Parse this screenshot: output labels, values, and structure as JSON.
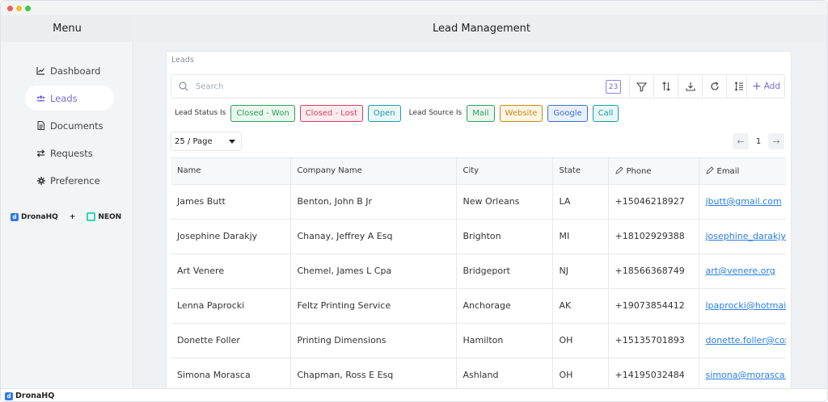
{
  "sidebar": {
    "title": "Menu",
    "items": [
      {
        "label": "Dashboard",
        "icon": "chart-line-icon"
      },
      {
        "label": "Leads",
        "icon": "users-icon"
      },
      {
        "label": "Documents",
        "icon": "document-icon"
      },
      {
        "label": "Requests",
        "icon": "swap-arrows-icon"
      },
      {
        "label": "Preference",
        "icon": "gear-icon"
      }
    ],
    "active_index": 1,
    "brand": {
      "left": "DronaHQ",
      "plus": "+",
      "right": "NEON"
    }
  },
  "header": {
    "title": "Lead Management"
  },
  "card": {
    "title": "Leads",
    "search": {
      "placeholder": "Search",
      "value": ""
    },
    "count_badge": "23",
    "add_label": "Add"
  },
  "filters": {
    "status_label": "Lead Status Is",
    "status_chips": [
      {
        "label": "Closed - Won",
        "color": "#2e9e58",
        "bg": "#eaf7ef"
      },
      {
        "label": "Closed - Lost",
        "color": "#d43f5c",
        "bg": "#fdecef"
      },
      {
        "label": "Open",
        "color": "#1f9aa5",
        "bg": "#e8f7f8"
      }
    ],
    "source_label": "Lead Source Is",
    "source_chips": [
      {
        "label": "Mail",
        "color": "#2e9e58",
        "bg": "#eaf7ef"
      },
      {
        "label": "Website",
        "color": "#c58a12",
        "bg": "#fdf5e4"
      },
      {
        "label": "Google",
        "color": "#3b6fd0",
        "bg": "#e9f0fc"
      },
      {
        "label": "Call",
        "color": "#1f9aa5",
        "bg": "#e8f7f8"
      }
    ]
  },
  "pagination": {
    "page_size": "25 / Page",
    "page": "1"
  },
  "table": {
    "columns": [
      "Name",
      "Company Name",
      "City",
      "State",
      "Phone",
      "Email"
    ],
    "rows": [
      [
        "James Butt",
        "Benton, John B Jr",
        "New Orleans",
        "LA",
        "+15046218927",
        "jbutt@gmail.com"
      ],
      [
        "Josephine Darakjy",
        "Chanay, Jeffrey A Esq",
        "Brighton",
        "MI",
        "+18102929388",
        "josephine_darakjy@darakjy.org"
      ],
      [
        "Art Venere",
        "Chemel, James L Cpa",
        "Bridgeport",
        "NJ",
        "+18566368749",
        "art@venere.org"
      ],
      [
        "Lenna Paprocki",
        "Feltz Printing Service",
        "Anchorage",
        "AK",
        "+19073854412",
        "lpaprocki@hotmail.com"
      ],
      [
        "Donette Foller",
        "Printing Dimensions",
        "Hamilton",
        "OH",
        "+15135701893",
        "donette.foller@cox.net"
      ],
      [
        "Simona Morasca",
        "Chapman, Ross E Esq",
        "Ashland",
        "OH",
        "+14195032484",
        "simona@morasca.com"
      ]
    ]
  },
  "footer": {
    "brand": "DronaHQ"
  }
}
